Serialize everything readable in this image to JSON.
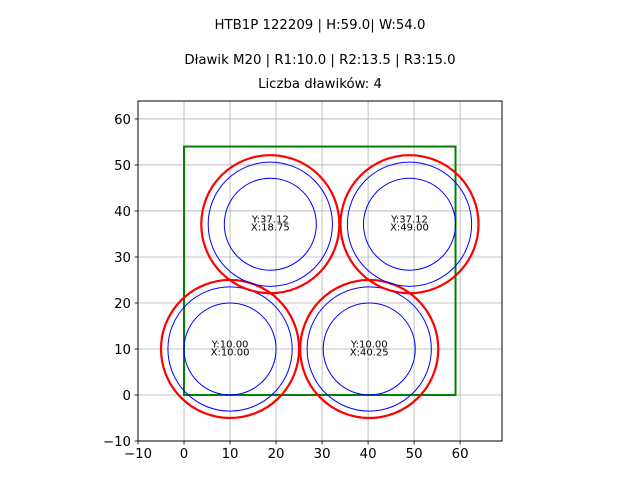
{
  "titles": {
    "suptitle": "HTB1P 122209 | H:59.0| W:54.0",
    "line2": "Dławik M20 | R1:10.0 | R2:13.5 | R3:15.0",
    "line3": "Liczba dławików: 4"
  },
  "colors": {
    "rect": "#008000",
    "outer_circle": "#ff0000",
    "inner_circles": "#0000ff",
    "grid": "#b0b0b0",
    "axes": "#000000"
  },
  "chart_data": {
    "type": "scatter",
    "title": "HTB1P 122209 | H:59.0| W:54.0",
    "subtitle": "Dławik M20 | R1:10.0 | R2:13.5 | R3:15.0 / Liczba dławików: 4",
    "xlabel": "",
    "ylabel": "",
    "xlim": [
      -10,
      69.1
    ],
    "ylim": [
      -10,
      63.9
    ],
    "grid": true,
    "aspect": "equal",
    "xticks": [
      -10,
      0,
      10,
      20,
      30,
      40,
      50,
      60
    ],
    "yticks": [
      -10,
      0,
      10,
      20,
      30,
      40,
      50,
      60
    ],
    "xtick_labels": [
      "−10",
      "0",
      "10",
      "20",
      "30",
      "40",
      "50",
      "60"
    ],
    "ytick_labels": [
      "−10",
      "0",
      "10",
      "20",
      "30",
      "40",
      "50",
      "60"
    ],
    "rectangle": {
      "x": 0,
      "y": 0,
      "width": 59.0,
      "height": 54.0
    },
    "radii": {
      "R1": 10.0,
      "R2": 13.5,
      "R3": 15.0
    },
    "glands": [
      {
        "x": 10.0,
        "y": 10.0,
        "label_y": "Y:10.00",
        "label_x": "X:10.00"
      },
      {
        "x": 40.25,
        "y": 10.0,
        "label_y": "Y:10.00",
        "label_x": "X:40.25"
      },
      {
        "x": 18.75,
        "y": 37.12,
        "label_y": "Y:37.12",
        "label_x": "X:18.75"
      },
      {
        "x": 49.0,
        "y": 37.12,
        "label_y": "Y:37.12",
        "label_x": "X:49.00"
      }
    ],
    "count": 4
  }
}
